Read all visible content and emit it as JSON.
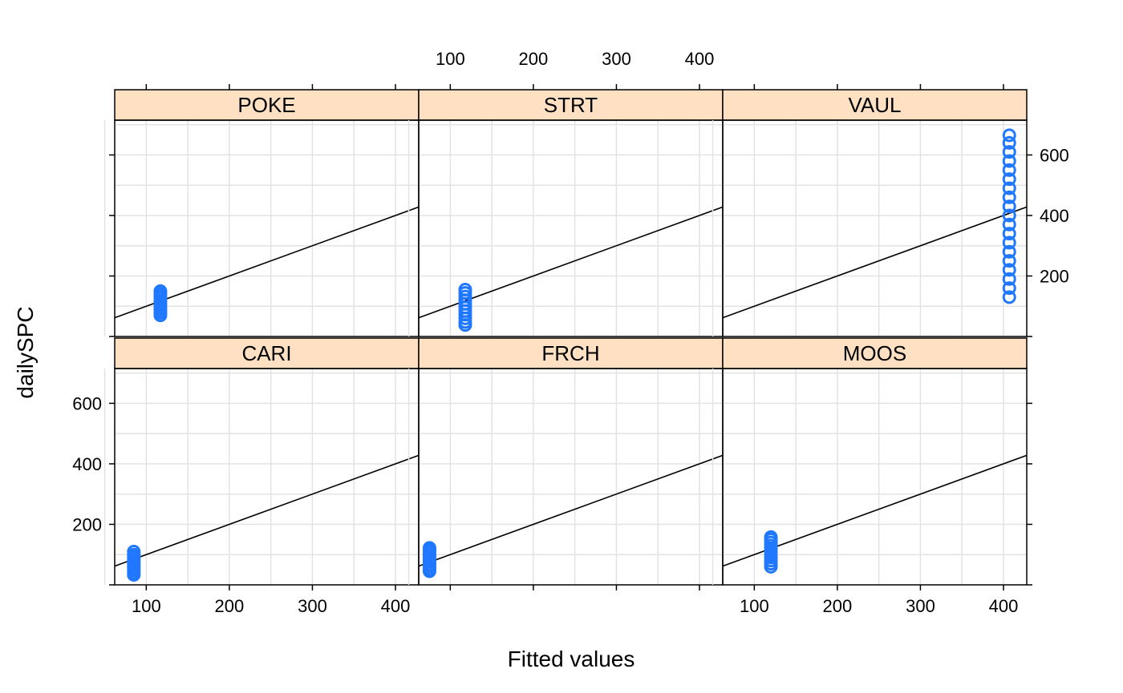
{
  "chart_data": {
    "type": "scatter",
    "xlabel": "Fitted values",
    "ylabel": "dailySPC",
    "xlim": [
      62,
      428
    ],
    "ylim": [
      0,
      715
    ],
    "x_ticks": [
      100,
      200,
      300,
      400
    ],
    "y_ticks": [
      200,
      400,
      600
    ],
    "grid": true,
    "reference_line": {
      "slope": 1,
      "intercept": 0
    },
    "colors": {
      "points": "#1f78ff",
      "strip_fill": "#ffe0c2",
      "grid": "#e3e3e3",
      "line": "#000000"
    },
    "panels": [
      {
        "name": "CARI",
        "x": 85,
        "y_min": 33,
        "y_max": 110,
        "y_values": [
          33,
          40,
          48,
          55,
          62,
          70,
          78,
          85,
          93,
          100,
          110
        ]
      },
      {
        "name": "FRCH",
        "x": 75,
        "y_min": 45,
        "y_max": 122,
        "y_values": [
          45,
          52,
          60,
          68,
          76,
          84,
          92,
          100,
          108,
          115,
          122
        ]
      },
      {
        "name": "MOOS",
        "x": 120,
        "y_min": 60,
        "y_max": 158,
        "y_values": [
          60,
          70,
          80,
          90,
          100,
          110,
          120,
          130,
          140,
          150,
          158
        ]
      },
      {
        "name": "POKE",
        "x": 117,
        "y_min": 70,
        "y_max": 150,
        "y_values": [
          70,
          78,
          86,
          94,
          102,
          110,
          118,
          126,
          134,
          142,
          150
        ]
      },
      {
        "name": "STRT",
        "x": 118,
        "y_min": 38,
        "y_max": 155,
        "y_values": [
          38,
          48,
          60,
          72,
          84,
          96,
          108,
          120,
          132,
          144,
          155
        ]
      },
      {
        "name": "VAUL",
        "x": 407,
        "y_min": 130,
        "y_max": 665,
        "y_values": [
          130,
          160,
          190,
          220,
          250,
          280,
          310,
          340,
          370,
          400,
          430,
          460,
          490,
          520,
          550,
          580,
          610,
          640,
          665
        ]
      }
    ]
  }
}
